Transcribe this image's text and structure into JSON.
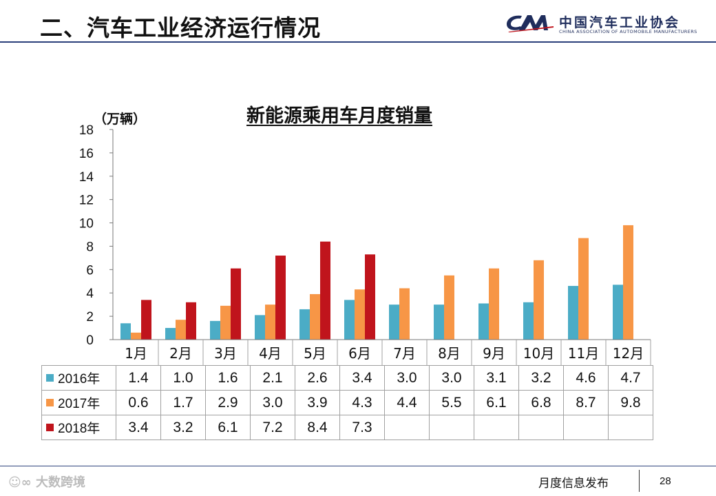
{
  "header": {
    "title": "二、汽车工业经济运行情况",
    "logo_cn": "中国汽车工业协会",
    "logo_en": "CHINA ASSOCIATION OF AUTOMOBILE MANUFACTURERS",
    "logo_mark": "CAM",
    "logo_color": "#1f2d5c"
  },
  "chart_data": {
    "type": "bar",
    "title": "新能源乘用车月度销量",
    "ylabel": "（万辆）",
    "xlabel": "",
    "ylim": [
      0,
      18
    ],
    "yticks": [
      0,
      2,
      4,
      6,
      8,
      10,
      12,
      14,
      16,
      18
    ],
    "grid": false,
    "legend": "table-left",
    "categories": [
      "1月",
      "2月",
      "3月",
      "4月",
      "5月",
      "6月",
      "7月",
      "8月",
      "9月",
      "10月",
      "11月",
      "12月"
    ],
    "series": [
      {
        "name": "2016年",
        "color": "#4bacc6",
        "values": [
          1.4,
          1.0,
          1.6,
          2.1,
          2.6,
          3.4,
          3.0,
          3.0,
          3.1,
          3.2,
          4.6,
          4.7
        ]
      },
      {
        "name": "2017年",
        "color": "#f79646",
        "values": [
          0.6,
          1.7,
          2.9,
          3.0,
          3.9,
          4.3,
          4.4,
          5.5,
          6.1,
          6.8,
          8.7,
          9.8
        ]
      },
      {
        "name": "2018年",
        "color": "#c0141c",
        "values": [
          3.4,
          3.2,
          6.1,
          7.2,
          8.4,
          7.3,
          null,
          null,
          null,
          null,
          null,
          null
        ]
      }
    ]
  },
  "footer": {
    "label": "月度信息发布",
    "page": "28",
    "watermark": "大数跨境"
  }
}
